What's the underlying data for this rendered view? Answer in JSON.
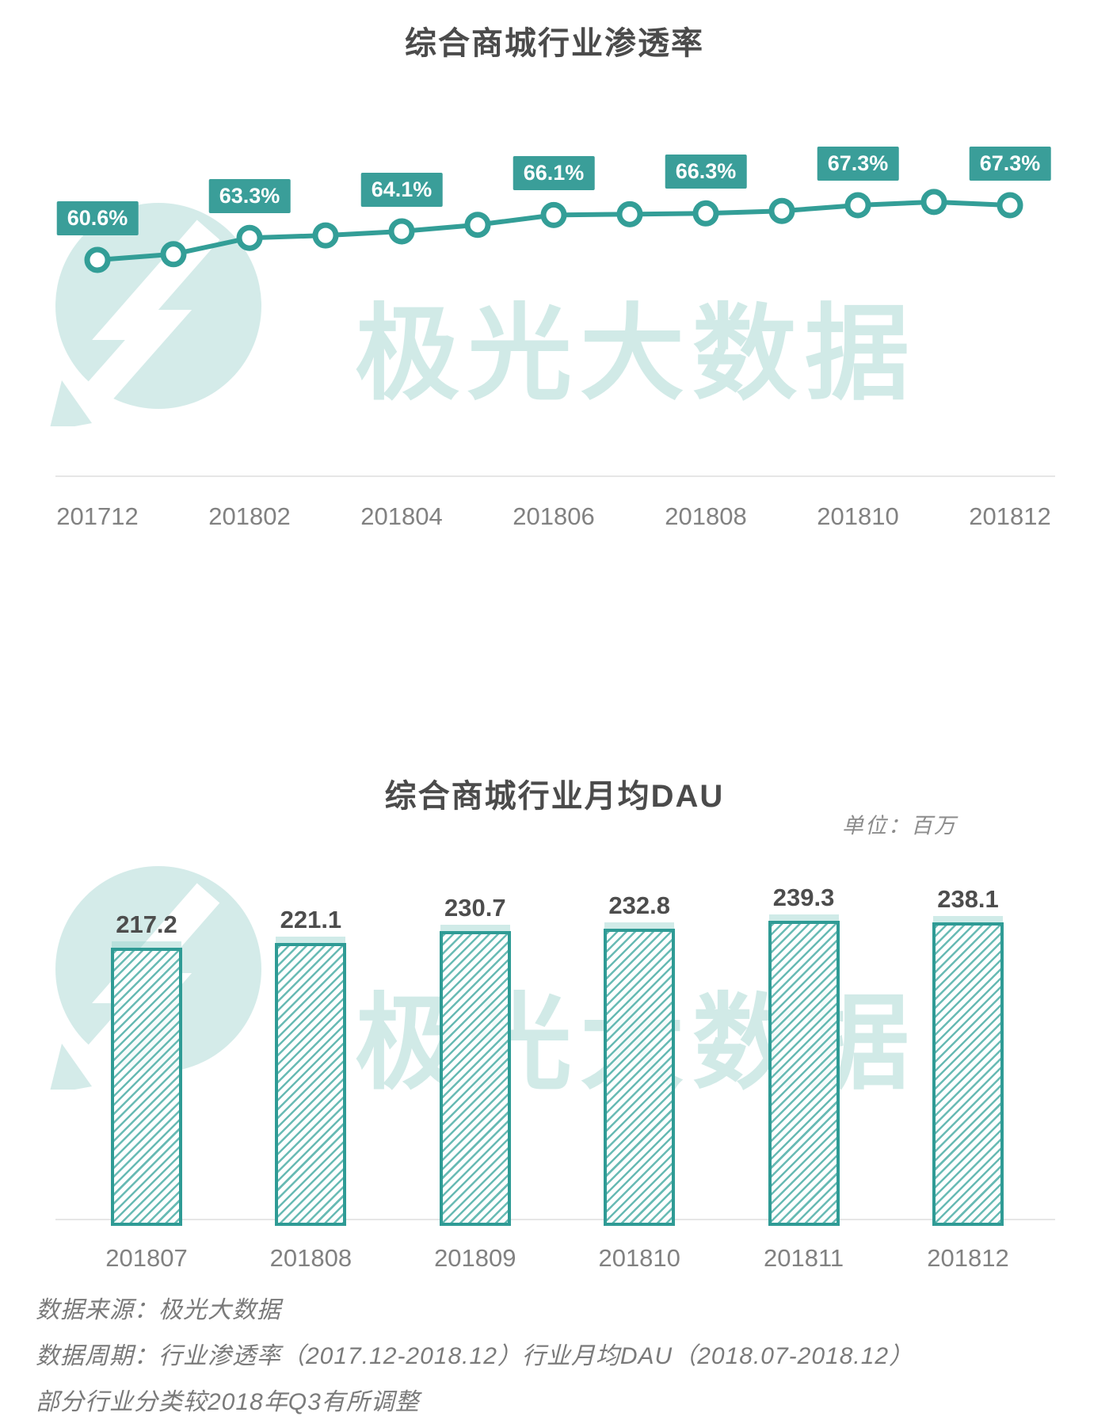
{
  "chart_data": [
    {
      "type": "line",
      "title": "综合商城行业渗透率",
      "x": [
        "201712",
        "201801",
        "201802",
        "201803",
        "201804",
        "201805",
        "201806",
        "201807",
        "201808",
        "201809",
        "201810",
        "201811",
        "201812"
      ],
      "y": [
        60.6,
        61.3,
        63.3,
        63.6,
        64.1,
        64.9,
        66.1,
        66.2,
        66.3,
        66.6,
        67.3,
        67.7,
        67.3
      ],
      "point_labels": [
        "60.6%",
        "",
        "63.3%",
        "",
        "64.1%",
        "",
        "66.1%",
        "",
        "66.3%",
        "",
        "67.3%",
        "",
        "67.3%"
      ],
      "x_tick_labels": [
        "201712",
        "201802",
        "201804",
        "201806",
        "201808",
        "201810",
        "201812"
      ],
      "ylim": [
        58,
        70
      ],
      "grid": false,
      "legend": "none"
    },
    {
      "type": "bar",
      "title": "综合商城行业月均DAU",
      "unit_label": "单位：百万",
      "categories": [
        "201807",
        "201808",
        "201809",
        "201810",
        "201811",
        "201812"
      ],
      "values": [
        217.2,
        221.1,
        230.7,
        232.8,
        239.3,
        238.1
      ],
      "bar_labels": [
        "217.2",
        "221.1",
        "230.7",
        "232.8",
        "239.3",
        "238.1"
      ],
      "ylim": [
        0,
        260
      ],
      "grid": false,
      "legend": "none"
    }
  ],
  "watermark": {
    "text": "极光大数据"
  },
  "footer": {
    "line1": "数据来源：极光大数据",
    "line2": "数据周期：行业渗透率（2017.12-2018.12）行业月均DAU（2018.07-2018.12）",
    "line3": "部分行业分类较2018年Q3有所调整"
  },
  "colors": {
    "teal_line": "#339e97",
    "label_box_bg": "#3a9e99",
    "label_box_text": "#ffffff",
    "bar_border": "#2f9b95",
    "axis": "#e6e6e6",
    "tick_text": "#818181",
    "title_text": "#4b4b4b",
    "value_text": "#4d4d4d",
    "footer_text": "#7a7a7a",
    "unit_text": "#8c8c8c",
    "watermark": "rgba(77,172,163,0.26)"
  }
}
